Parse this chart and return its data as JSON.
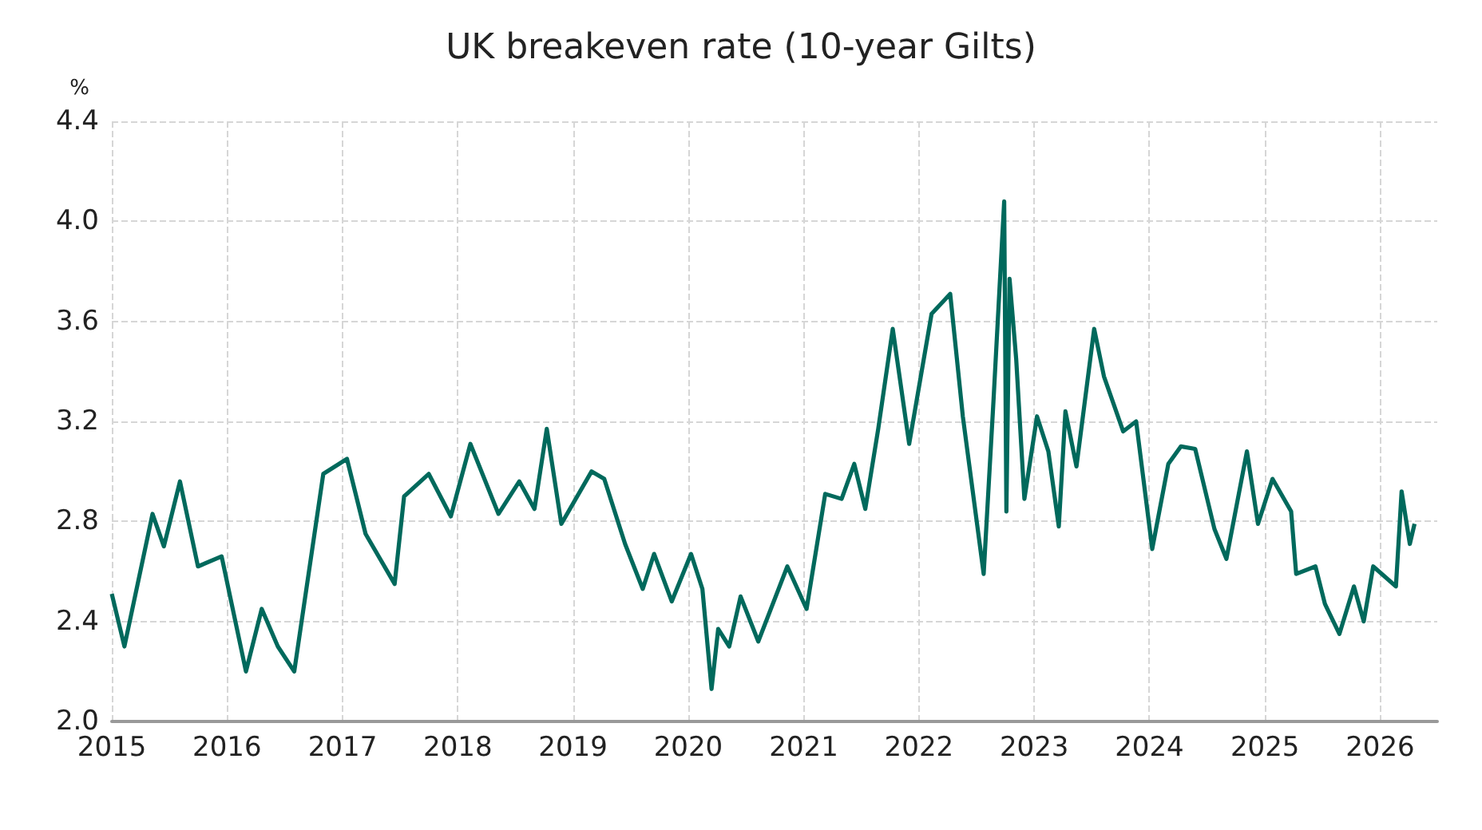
{
  "chart_data": {
    "type": "line",
    "title": "UK breakeven rate (10-year Gilts)",
    "ylabel": "%",
    "x": [
      "2015-01-01",
      "2015-02-10",
      "2015-05-10",
      "2015-06-15",
      "2015-08-05",
      "2015-10-01",
      "2015-12-15",
      "2016-03-01",
      "2016-04-20",
      "2016-06-10",
      "2016-08-01",
      "2016-11-01",
      "2017-01-15",
      "2017-03-15",
      "2017-06-15",
      "2017-07-15",
      "2017-10-01",
      "2017-12-10",
      "2018-02-10",
      "2018-05-10",
      "2018-07-15",
      "2018-09-01",
      "2018-10-10",
      "2018-11-25",
      "2019-03-01",
      "2019-04-10",
      "2019-06-15",
      "2019-08-10",
      "2019-09-15",
      "2019-11-10",
      "2020-01-10",
      "2020-02-15",
      "2020-03-15",
      "2020-04-05",
      "2020-05-10",
      "2020-06-15",
      "2020-08-10",
      "2020-11-10",
      "2021-01-10",
      "2021-03-10",
      "2021-05-01",
      "2021-06-10",
      "2021-07-15",
      "2021-08-25",
      "2021-10-10",
      "2021-12-01",
      "2022-02-10",
      "2022-04-10",
      "2022-05-20",
      "2022-07-25",
      "2022-08-25",
      "2022-09-28",
      "2022-10-05",
      "2022-10-15",
      "2022-11-05",
      "2022-12-01",
      "2023-01-10",
      "2023-02-15",
      "2023-03-20",
      "2023-04-10",
      "2023-05-15",
      "2023-07-10",
      "2023-08-10",
      "2023-10-10",
      "2023-11-20",
      "2024-01-10",
      "2024-03-01",
      "2024-04-10",
      "2024-05-25",
      "2024-07-25",
      "2024-09-01",
      "2024-11-05",
      "2024-12-10",
      "2025-01-25",
      "2025-03-25",
      "2025-04-10",
      "2025-06-10",
      "2025-07-10",
      "2025-08-25",
      "2025-10-10",
      "2025-11-10",
      "2025-12-10",
      "2026-02-20",
      "2026-03-10",
      "2026-04-05",
      "2026-04-20"
    ],
    "series": [
      {
        "color": "#00695c",
        "values": [
          2.51,
          2.3,
          2.83,
          2.7,
          2.96,
          2.62,
          2.66,
          2.2,
          2.45,
          2.3,
          2.2,
          2.99,
          3.05,
          2.75,
          2.55,
          2.9,
          2.99,
          2.82,
          3.11,
          2.83,
          2.96,
          2.85,
          3.17,
          2.79,
          3.0,
          2.97,
          2.71,
          2.53,
          2.67,
          2.48,
          2.67,
          2.53,
          2.13,
          2.37,
          2.3,
          2.5,
          2.32,
          2.62,
          2.45,
          2.91,
          2.89,
          3.03,
          2.85,
          3.17,
          3.57,
          3.11,
          3.63,
          3.71,
          3.22,
          2.59,
          3.28,
          4.08,
          2.84,
          3.77,
          3.45,
          2.89,
          3.22,
          3.08,
          2.78,
          3.24,
          3.02,
          3.57,
          3.38,
          3.16,
          3.2,
          2.69,
          3.03,
          3.1,
          3.09,
          2.77,
          2.65,
          3.08,
          2.79,
          2.97,
          2.84,
          2.59,
          2.62,
          2.47,
          2.35,
          2.54,
          2.4,
          2.62,
          2.54,
          2.92,
          2.71,
          2.79
        ]
      }
    ],
    "xlim": [
      "2015-01-01",
      "2026-07-01"
    ],
    "xticks": [
      {
        "value": "2015",
        "label": "2015"
      },
      {
        "value": "2016",
        "label": "2016"
      },
      {
        "value": "2017",
        "label": "2017"
      },
      {
        "value": "2018",
        "label": "2018"
      },
      {
        "value": "2019",
        "label": "2019"
      },
      {
        "value": "2020",
        "label": "2020"
      },
      {
        "value": "2021",
        "label": "2021"
      },
      {
        "value": "2022",
        "label": "2022"
      },
      {
        "value": "2023",
        "label": "2023"
      },
      {
        "value": "2024",
        "label": "2024"
      },
      {
        "value": "2025",
        "label": "2025"
      },
      {
        "value": "2026",
        "label": "2026"
      }
    ],
    "ylim": [
      2.0,
      4.4
    ],
    "yticks": [
      {
        "value": 2.0,
        "label": "2.0"
      },
      {
        "value": 2.4,
        "label": "2.4"
      },
      {
        "value": 2.8,
        "label": "2.8"
      },
      {
        "value": 3.2,
        "label": "3.2"
      },
      {
        "value": 3.6,
        "label": "3.6"
      },
      {
        "value": 4.0,
        "label": "4.0"
      },
      {
        "value": 4.4,
        "label": "4.4"
      }
    ],
    "grid": true,
    "marker": "none",
    "line_style": "solid"
  }
}
